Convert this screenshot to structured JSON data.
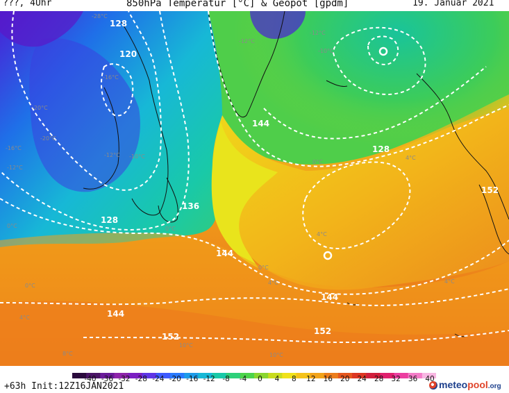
{
  "header": {
    "left": "???, 4Uhr",
    "title": "850hPa Temperatur [°C] & Geopot [gpdm]",
    "date": "19. Januar 2021"
  },
  "footer": {
    "run": "+63h Init:12Z16JAN2021",
    "logo_main": "meteo",
    "logo_accent": "pool",
    "logo_tld": ".org"
  },
  "colorbar": {
    "labels": [
      "-40",
      "-36",
      "-32",
      "-28",
      "-24",
      "-20",
      "-16",
      "-12",
      "-8",
      "-4",
      "0",
      "4",
      "8",
      "12",
      "16",
      "20",
      "24",
      "28",
      "32",
      "36",
      "40"
    ],
    "colors": [
      "#2a0a3c",
      "#4a1466",
      "#6a1b9a",
      "#8e24aa",
      "#7b1fc2",
      "#5e35e6",
      "#3d5afe",
      "#2979ff",
      "#1e9be8",
      "#17b8d6",
      "#19c9a8",
      "#2ed07a",
      "#4cd44a",
      "#8ad630",
      "#c8dc1e",
      "#f0e21a",
      "#f5c31a",
      "#f2a31a",
      "#ec7d1c",
      "#e5561e",
      "#dd3622",
      "#d11f3c",
      "#e0206e",
      "#ec3ea0",
      "#f47cc8",
      "#f8b6e2"
    ]
  },
  "map": {
    "geopotential_labels": [
      "128",
      "120",
      "144",
      "136",
      "128",
      "144",
      "128",
      "152",
      "144",
      "144",
      "152",
      "152"
    ],
    "temperature_labels": [
      "-28°C",
      "-20°C",
      "-16°C",
      "-20°C",
      "-16°C",
      "-12°C",
      "-12°C",
      "-10°C",
      "-12°C",
      "-10°C",
      "0°C",
      "0°C",
      "0°C",
      "4°C",
      "0°C",
      "4°C",
      "4°C",
      "4°C",
      "4°C",
      "10°C",
      "10°C",
      "8°C",
      "0°C",
      "-12°C"
    ]
  }
}
